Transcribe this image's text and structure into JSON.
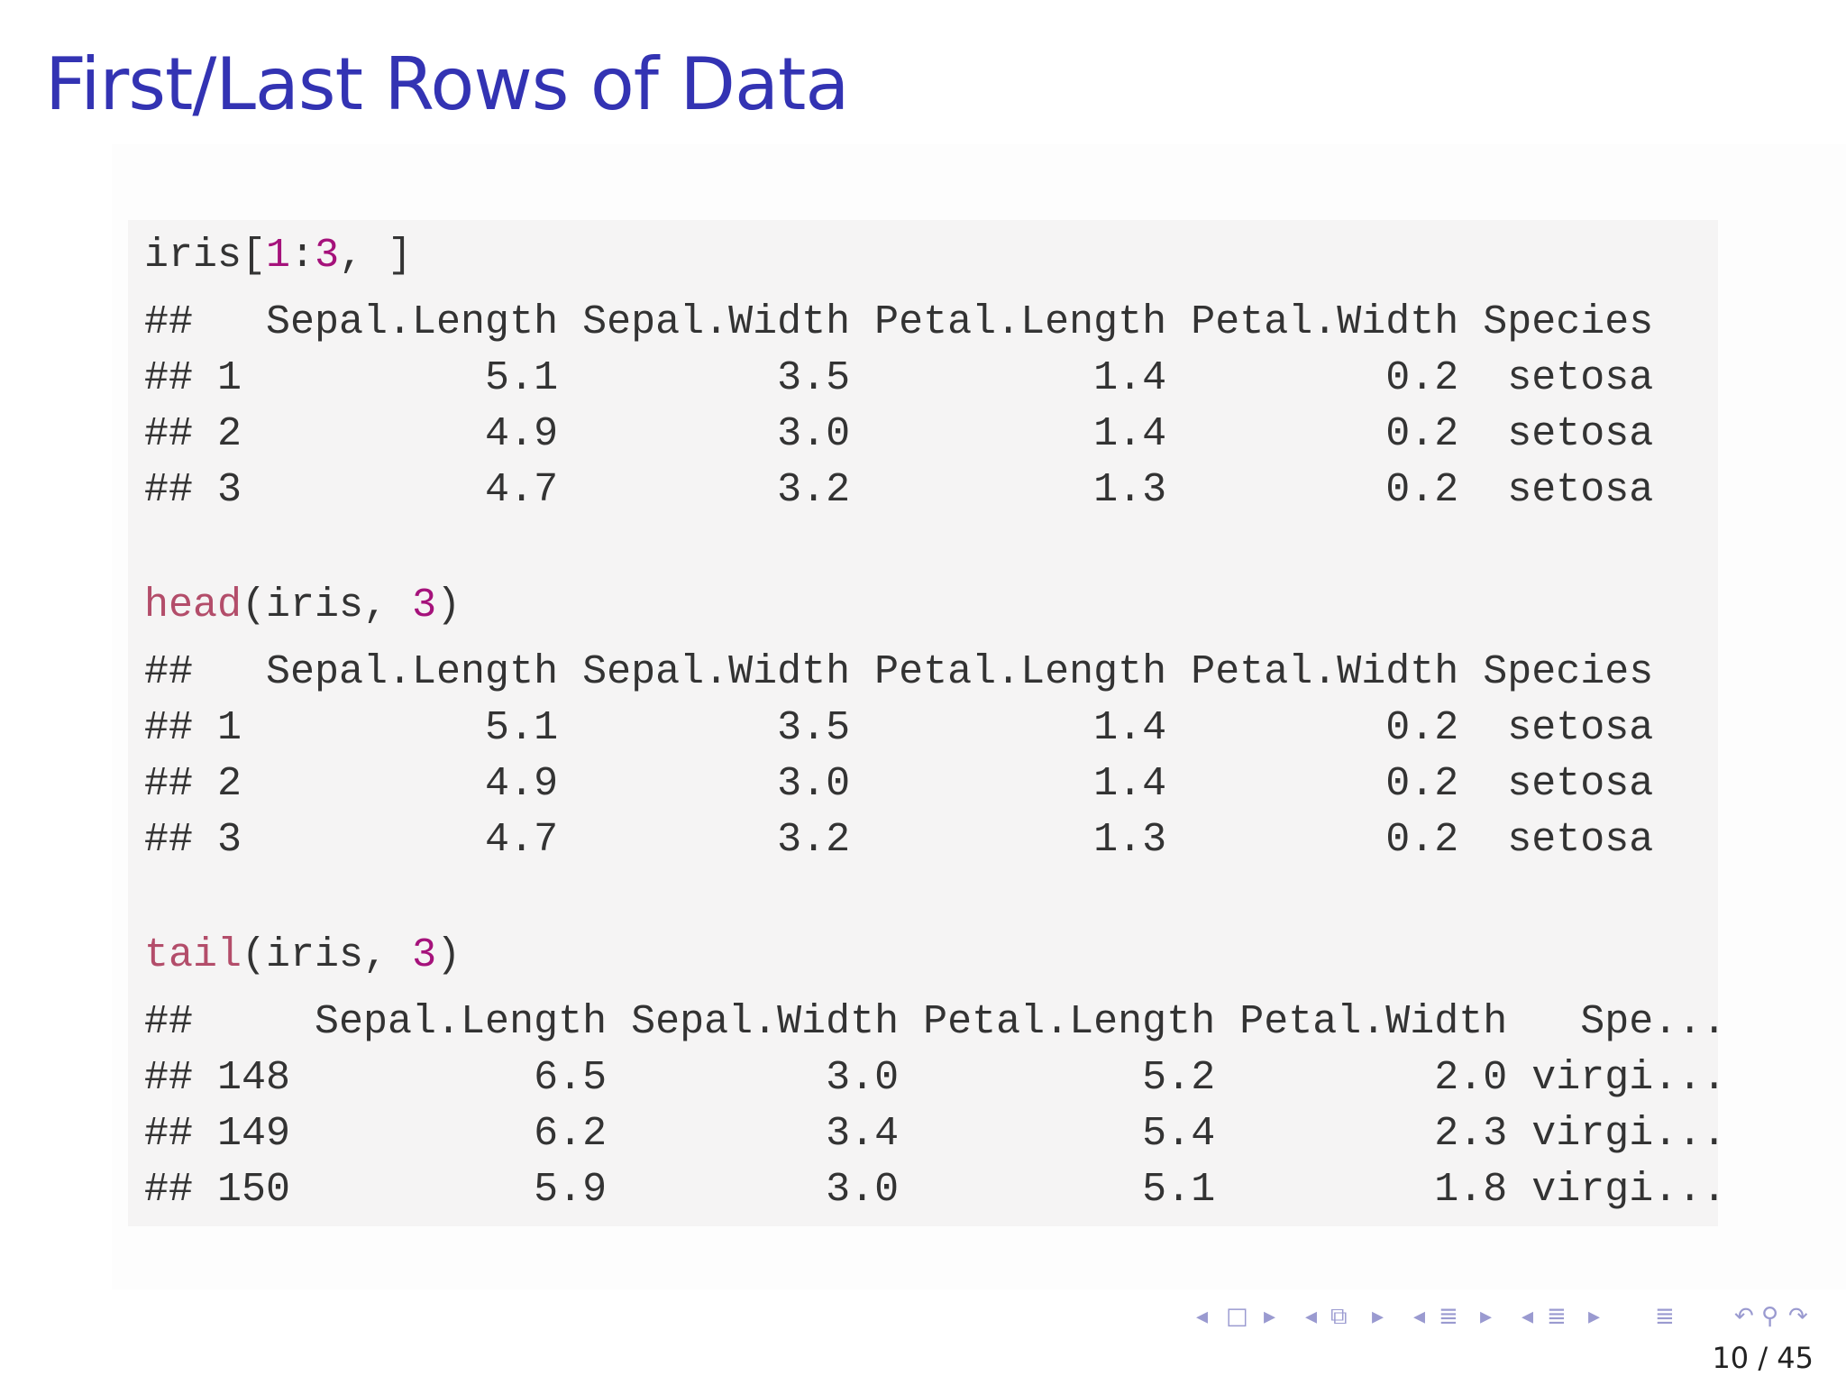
{
  "slide": {
    "title": "First/Last Rows of Data",
    "page_current": "10",
    "page_separator": "/",
    "page_total": "45"
  },
  "code_blocks": [
    {
      "call": {
        "prefix": "iris[",
        "num1": "1",
        "mid": ":",
        "num2": "3",
        "suffix": ", ]"
      },
      "output": [
        "##   Sepal.Length Sepal.Width Petal.Length Petal.Width Species",
        "## 1          5.1         3.5          1.4         0.2  setosa",
        "## 2          4.9         3.0          1.4         0.2  setosa",
        "## 3          4.7         3.2          1.3         0.2  setosa"
      ]
    },
    {
      "call": {
        "fn": "head",
        "open": "(iris, ",
        "num": "3",
        "close": ")"
      },
      "output": [
        "##   Sepal.Length Sepal.Width Petal.Length Petal.Width Species",
        "## 1          5.1         3.5          1.4         0.2  setosa",
        "## 2          4.9         3.0          1.4         0.2  setosa",
        "## 3          4.7         3.2          1.3         0.2  setosa"
      ]
    },
    {
      "call": {
        "fn": "tail",
        "open": "(iris, ",
        "num": "3",
        "close": ")"
      },
      "output": [
        "##     Sepal.Length Sepal.Width Petal.Length Petal.Width   Spe...",
        "## 148          6.5         3.0          5.2         2.0 virgi...",
        "## 149          6.2         3.4          5.4         2.3 virgi...",
        "## 150          5.9         3.0          5.1         1.8 virgi..."
      ]
    }
  ],
  "navigation": {
    "icons": [
      {
        "name": "nav-prev-slide-icon",
        "glyph": "◂"
      },
      {
        "name": "nav-slide-icon",
        "glyph": "□"
      },
      {
        "name": "nav-next-slide-icon",
        "glyph": "▸"
      },
      {
        "name": "nav-prev-frame-icon",
        "glyph": "◂"
      },
      {
        "name": "nav-frame-icon",
        "glyph": "⧉"
      },
      {
        "name": "nav-next-frame-icon",
        "glyph": "▸"
      },
      {
        "name": "nav-prev-subsection-icon",
        "glyph": "◂"
      },
      {
        "name": "nav-subsection-icon",
        "glyph": "≣"
      },
      {
        "name": "nav-next-subsection-icon",
        "glyph": "▸"
      },
      {
        "name": "nav-prev-section-icon",
        "glyph": "◂"
      },
      {
        "name": "nav-section-icon",
        "glyph": "≣"
      },
      {
        "name": "nav-next-section-icon",
        "glyph": "▸"
      },
      {
        "name": "nav-document-icon",
        "glyph": "≣"
      },
      {
        "name": "nav-back-icon",
        "glyph": "↶"
      },
      {
        "name": "nav-search-icon",
        "glyph": "⚲"
      },
      {
        "name": "nav-forward-icon",
        "glyph": "↷"
      }
    ]
  },
  "colors": {
    "title": "#3333b3",
    "code_background": "#f5f4f4",
    "code_text": "#333333",
    "function_name": "#b34d6a",
    "number_literal": "#a5127b",
    "nav_icons": "#9a9ad0"
  }
}
